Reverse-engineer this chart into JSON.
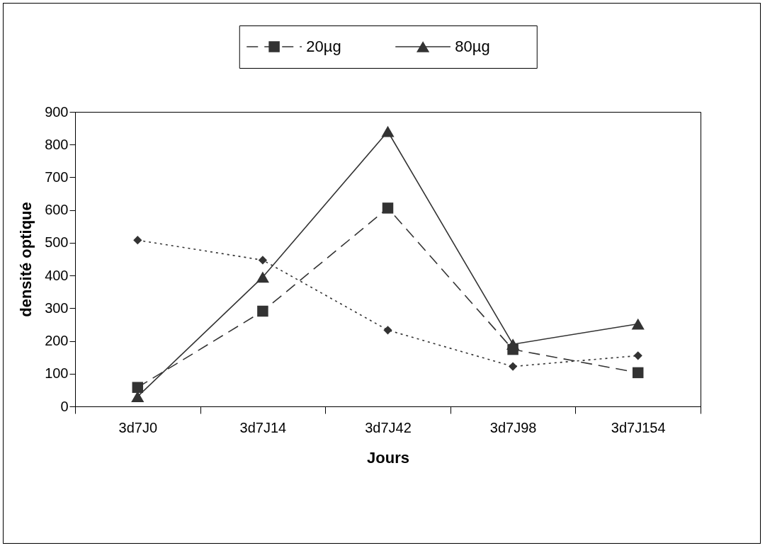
{
  "chart_data": {
    "type": "line",
    "categories": [
      "3d7J0",
      "3d7J14",
      "3d7J42",
      "3d7J98",
      "3d7J154"
    ],
    "xlabel": "Jours",
    "ylabel": "densité optique",
    "ylim": [
      0,
      900
    ],
    "yticks": [
      0,
      100,
      200,
      300,
      400,
      500,
      600,
      700,
      800,
      900
    ],
    "legend": "top",
    "series": [
      {
        "color": "#333333",
        "marker": "diamond",
        "line_style": "dotted",
        "values": [
          508,
          447,
          233,
          122,
          155
        ]
      },
      {
        "name": "20µg",
        "color": "#333333",
        "marker": "square",
        "line_style": "dashed",
        "values": [
          58,
          291,
          606,
          174,
          103
        ]
      },
      {
        "name": "80µg",
        "color": "#333333",
        "marker": "triangle",
        "line_style": "solid",
        "values": [
          30,
          395,
          840,
          190,
          252
        ]
      }
    ]
  }
}
